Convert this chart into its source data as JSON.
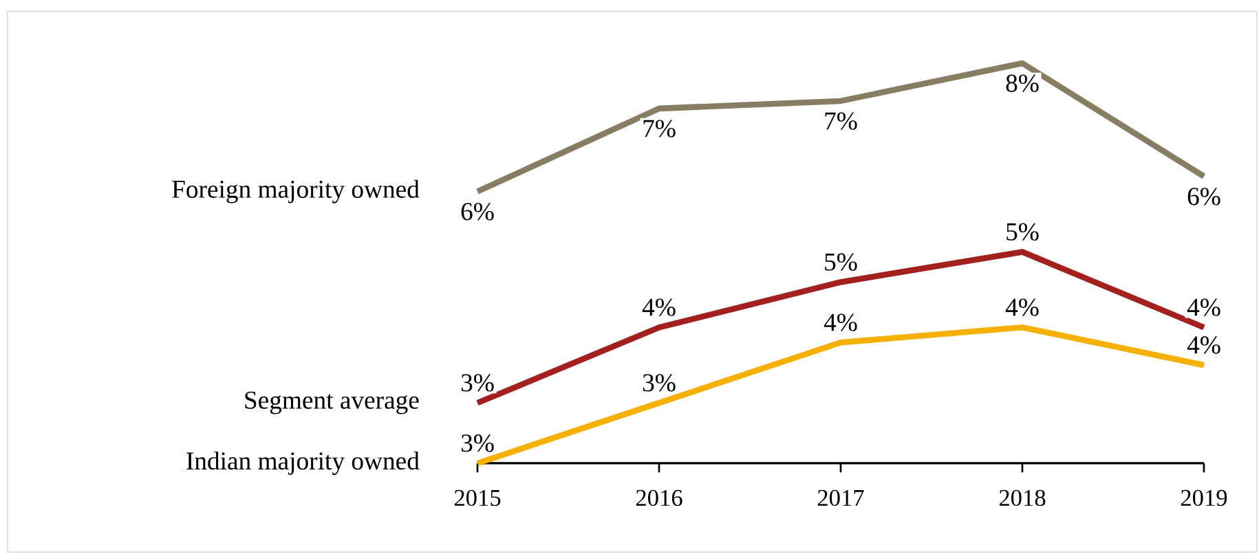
{
  "chart_data": {
    "type": "line",
    "marker": "none",
    "categories": [
      "2015",
      "2016",
      "2017",
      "2018",
      "2019"
    ],
    "series": [
      {
        "name": "Foreign majority owned",
        "color": "#877d62",
        "values": [
          6.2,
          7.3,
          7.4,
          7.9,
          6.4
        ],
        "value_labels": [
          "6%",
          "7%",
          "7%",
          "8%",
          "6%"
        ]
      },
      {
        "name": "Segment average",
        "color": "#a3201f",
        "values": [
          3.4,
          4.4,
          5.0,
          5.4,
          4.4
        ],
        "value_labels": [
          "3%",
          "4%",
          "5%",
          "5%",
          "4%"
        ]
      },
      {
        "name": "Indian majority owned",
        "color": "#f5b000",
        "values": [
          2.6,
          3.4,
          4.2,
          4.4,
          3.9
        ],
        "value_labels": [
          "3%",
          "3%",
          "4%",
          "4%",
          "4%"
        ]
      }
    ]
  }
}
